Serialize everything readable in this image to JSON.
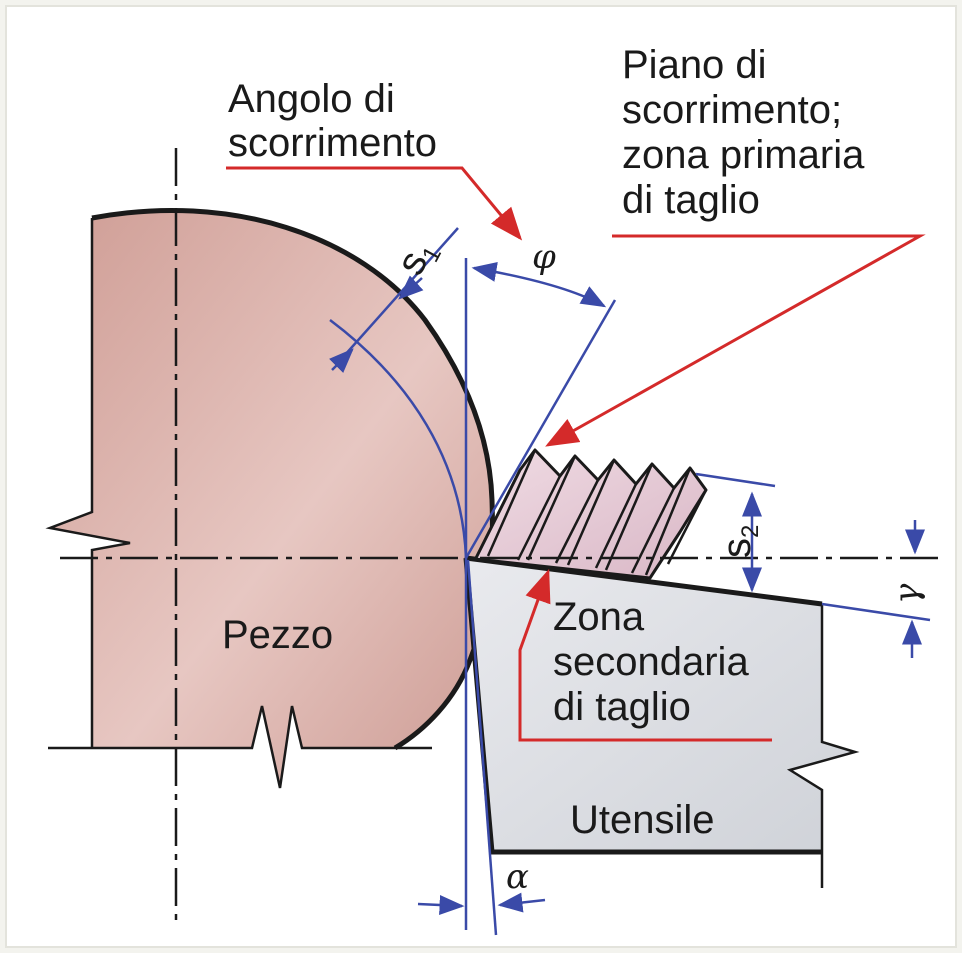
{
  "labels": {
    "angolo_line1": "Angolo di",
    "angolo_line2": "scorrimento",
    "piano_line1": "Piano di",
    "piano_line2": "scorrimento;",
    "piano_line3": "zona primaria",
    "piano_line4": "di taglio",
    "zona_line1": "Zona",
    "zona_line2": "secondaria",
    "zona_line3": "di taglio",
    "pezzo": "Pezzo",
    "utensile": "Utensile"
  },
  "symbols": {
    "phi": "φ",
    "alpha": "α",
    "gamma": "γ",
    "s": "s",
    "sub1": "1",
    "sub2": "2"
  },
  "colors": {
    "workpiece": "#d8aaa2",
    "chip": "#e6cbd6",
    "tool": "#dcdee3",
    "outline": "#1a1a1a",
    "dimension_blue": "#3a4aa8",
    "leader_red": "#d42a2a",
    "frame_bg": "#f3f3ee"
  }
}
